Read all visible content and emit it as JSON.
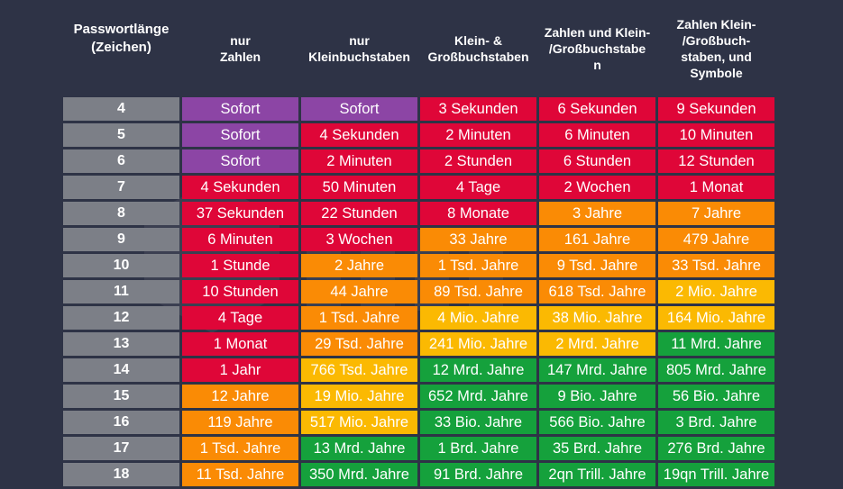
{
  "headers": [
    "Passwortlänge\n(Zeichen)",
    "nur\nZahlen",
    "nur\nKleinbuchstaben",
    "Klein- &\nGroßbuchstaben",
    "Zahlen und Klein-\n/Großbuchstabe\nn",
    "Zahlen Klein-\n/Großbuch-\nstaben, und\nSymbole"
  ],
  "colors": {
    "purple": "#8c45a5",
    "red": "#df0638",
    "orange": "#fa8b05",
    "yellow": "#fbb902",
    "green": "#15a13c",
    "length_cell": "#7c7f87",
    "background": "#2e3346"
  },
  "rows": [
    {
      "length": "4",
      "cells": [
        {
          "text": "Sofort",
          "color": "purple"
        },
        {
          "text": "Sofort",
          "color": "purple"
        },
        {
          "text": "3 Sekunden",
          "color": "red"
        },
        {
          "text": "6 Sekunden",
          "color": "red"
        },
        {
          "text": "9 Sekunden",
          "color": "red"
        }
      ]
    },
    {
      "length": "5",
      "cells": [
        {
          "text": "Sofort",
          "color": "purple"
        },
        {
          "text": "4 Sekunden",
          "color": "red"
        },
        {
          "text": "2 Minuten",
          "color": "red"
        },
        {
          "text": "6 Minuten",
          "color": "red"
        },
        {
          "text": "10 Minuten",
          "color": "red"
        }
      ]
    },
    {
      "length": "6",
      "cells": [
        {
          "text": "Sofort",
          "color": "purple"
        },
        {
          "text": "2 Minuten",
          "color": "red"
        },
        {
          "text": "2 Stunden",
          "color": "red"
        },
        {
          "text": "6 Stunden",
          "color": "red"
        },
        {
          "text": "12 Stunden",
          "color": "red"
        }
      ]
    },
    {
      "length": "7",
      "cells": [
        {
          "text": "4 Sekunden",
          "color": "red"
        },
        {
          "text": "50 Minuten",
          "color": "red"
        },
        {
          "text": "4 Tage",
          "color": "red"
        },
        {
          "text": "2 Wochen",
          "color": "red"
        },
        {
          "text": "1 Monat",
          "color": "red"
        }
      ]
    },
    {
      "length": "8",
      "cells": [
        {
          "text": "37 Sekunden",
          "color": "red"
        },
        {
          "text": "22 Stunden",
          "color": "red"
        },
        {
          "text": "8 Monate",
          "color": "red"
        },
        {
          "text": "3 Jahre",
          "color": "orange"
        },
        {
          "text": "7 Jahre",
          "color": "orange"
        }
      ]
    },
    {
      "length": "9",
      "cells": [
        {
          "text": "6 Minuten",
          "color": "red"
        },
        {
          "text": "3 Wochen",
          "color": "red"
        },
        {
          "text": "33 Jahre",
          "color": "orange"
        },
        {
          "text": "161 Jahre",
          "color": "orange"
        },
        {
          "text": "479 Jahre",
          "color": "orange"
        }
      ]
    },
    {
      "length": "10",
      "cells": [
        {
          "text": "1 Stunde",
          "color": "red"
        },
        {
          "text": "2 Jahre",
          "color": "orange"
        },
        {
          "text": "1 Tsd. Jahre",
          "color": "orange"
        },
        {
          "text": "9 Tsd. Jahre",
          "color": "orange"
        },
        {
          "text": "33 Tsd. Jahre",
          "color": "orange"
        }
      ]
    },
    {
      "length": "11",
      "cells": [
        {
          "text": "10 Stunden",
          "color": "red"
        },
        {
          "text": "44 Jahre",
          "color": "orange"
        },
        {
          "text": "89 Tsd. Jahre",
          "color": "orange"
        },
        {
          "text": "618 Tsd. Jahre",
          "color": "orange"
        },
        {
          "text": "2 Mio. Jahre",
          "color": "yellow"
        }
      ]
    },
    {
      "length": "12",
      "cells": [
        {
          "text": "4 Tage",
          "color": "red"
        },
        {
          "text": "1 Tsd. Jahre",
          "color": "orange"
        },
        {
          "text": "4 Mio. Jahre",
          "color": "yellow"
        },
        {
          "text": "38 Mio. Jahre",
          "color": "yellow"
        },
        {
          "text": "164 Mio. Jahre",
          "color": "yellow"
        }
      ]
    },
    {
      "length": "13",
      "cells": [
        {
          "text": "1 Monat",
          "color": "red"
        },
        {
          "text": "29 Tsd. Jahre",
          "color": "orange"
        },
        {
          "text": "241 Mio. Jahre",
          "color": "yellow"
        },
        {
          "text": "2 Mrd. Jahre",
          "color": "yellow"
        },
        {
          "text": "11 Mrd. Jahre",
          "color": "green"
        }
      ]
    },
    {
      "length": "14",
      "cells": [
        {
          "text": "1 Jahr",
          "color": "red"
        },
        {
          "text": "766 Tsd. Jahre",
          "color": "yellow"
        },
        {
          "text": "12 Mrd. Jahre",
          "color": "green"
        },
        {
          "text": "147 Mrd. Jahre",
          "color": "green"
        },
        {
          "text": "805 Mrd. Jahre",
          "color": "green"
        }
      ]
    },
    {
      "length": "15",
      "cells": [
        {
          "text": "12 Jahre",
          "color": "orange"
        },
        {
          "text": "19 Mio. Jahre",
          "color": "yellow"
        },
        {
          "text": "652 Mrd. Jahre",
          "color": "green"
        },
        {
          "text": "9 Bio. Jahre",
          "color": "green"
        },
        {
          "text": "56 Bio. Jahre",
          "color": "green"
        }
      ]
    },
    {
      "length": "16",
      "cells": [
        {
          "text": "119 Jahre",
          "color": "orange"
        },
        {
          "text": "517 Mio. Jahre",
          "color": "yellow"
        },
        {
          "text": "33 Bio. Jahre",
          "color": "green"
        },
        {
          "text": "566 Bio. Jahre",
          "color": "green"
        },
        {
          "text": "3 Brd. Jahre",
          "color": "green"
        }
      ]
    },
    {
      "length": "17",
      "cells": [
        {
          "text": "1 Tsd. Jahre",
          "color": "orange"
        },
        {
          "text": "13 Mrd. Jahre",
          "color": "green"
        },
        {
          "text": "1 Brd. Jahre",
          "color": "green"
        },
        {
          "text": "35 Brd. Jahre",
          "color": "green"
        },
        {
          "text": "276 Brd. Jahre",
          "color": "green"
        }
      ]
    },
    {
      "length": "18",
      "cells": [
        {
          "text": "11 Tsd. Jahre",
          "color": "orange"
        },
        {
          "text": "350 Mrd. Jahre",
          "color": "green"
        },
        {
          "text": "91 Brd. Jahre",
          "color": "green"
        },
        {
          "text": "2qn Trill. Jahre",
          "color": "green"
        },
        {
          "text": "19qn Trill. Jahre",
          "color": "green"
        }
      ]
    }
  ]
}
